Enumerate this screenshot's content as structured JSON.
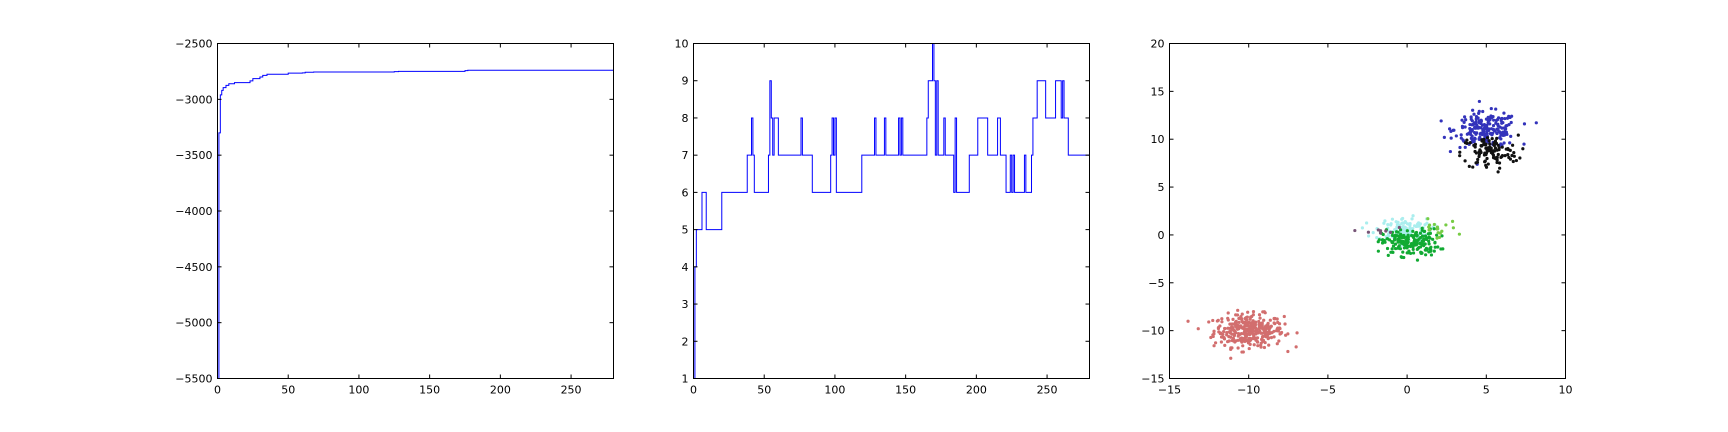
{
  "chart_data": [
    {
      "type": "line",
      "title": "",
      "xlabel": "",
      "ylabel": "",
      "xlim": [
        0,
        280
      ],
      "ylim": [
        -5500,
        -2500
      ],
      "xticks": [
        0,
        50,
        100,
        150,
        200,
        250
      ],
      "yticks": [
        -2500,
        -3000,
        -3500,
        -4000,
        -4500,
        -5000,
        -5500
      ],
      "grid": false,
      "series": [
        {
          "color": "#0000ff",
          "points": [
            [
              0,
              -5500
            ],
            [
              1,
              -3300
            ],
            [
              2,
              -2960
            ],
            [
              3,
              -2920
            ],
            [
              4,
              -2895
            ],
            [
              6,
              -2875
            ],
            [
              8,
              -2860
            ],
            [
              12,
              -2850
            ],
            [
              22,
              -2850
            ],
            [
              23,
              -2835
            ],
            [
              25,
              -2815
            ],
            [
              30,
              -2800
            ],
            [
              32,
              -2785
            ],
            [
              35,
              -2775
            ],
            [
              48,
              -2775
            ],
            [
              50,
              -2765
            ],
            [
              60,
              -2763
            ],
            [
              62,
              -2758
            ],
            [
              68,
              -2755
            ],
            [
              125,
              -2752
            ],
            [
              128,
              -2750
            ],
            [
              170,
              -2750
            ],
            [
              175,
              -2743
            ],
            [
              177,
              -2740
            ],
            [
              280,
              -2740
            ]
          ]
        }
      ]
    },
    {
      "type": "line",
      "title": "",
      "xlabel": "",
      "ylabel": "",
      "xlim": [
        0,
        280
      ],
      "ylim": [
        1,
        10
      ],
      "xticks": [
        0,
        50,
        100,
        150,
        200,
        250
      ],
      "yticks": [
        1,
        2,
        3,
        4,
        5,
        6,
        7,
        8,
        9,
        10
      ],
      "grid": false,
      "series": [
        {
          "color": "#0000ff",
          "points": [
            [
              0,
              1
            ],
            [
              1,
              4
            ],
            [
              2,
              5
            ],
            [
              5,
              5
            ],
            [
              6,
              6
            ],
            [
              8,
              6
            ],
            [
              9,
              5
            ],
            [
              19,
              5
            ],
            [
              20,
              6
            ],
            [
              37,
              6
            ],
            [
              38,
              7
            ],
            [
              40,
              7
            ],
            [
              41,
              8
            ],
            [
              42,
              7
            ],
            [
              43,
              6
            ],
            [
              52,
              6
            ],
            [
              53,
              7
            ],
            [
              54,
              9
            ],
            [
              55,
              8
            ],
            [
              56,
              7
            ],
            [
              57,
              8
            ],
            [
              59,
              8
            ],
            [
              60,
              7
            ],
            [
              75,
              7
            ],
            [
              76,
              8
            ],
            [
              77,
              7
            ],
            [
              83,
              7
            ],
            [
              84,
              6
            ],
            [
              96,
              6
            ],
            [
              97,
              7
            ],
            [
              98,
              8
            ],
            [
              99,
              7
            ],
            [
              100,
              8
            ],
            [
              101,
              6
            ],
            [
              118,
              6
            ],
            [
              119,
              7
            ],
            [
              127,
              7
            ],
            [
              128,
              8
            ],
            [
              129,
              7
            ],
            [
              134,
              7
            ],
            [
              135,
              8
            ],
            [
              136,
              7
            ],
            [
              144,
              7
            ],
            [
              145,
              8
            ],
            [
              146,
              7
            ],
            [
              147,
              8
            ],
            [
              148,
              7
            ],
            [
              164,
              7
            ],
            [
              165,
              8
            ],
            [
              166,
              9
            ],
            [
              168,
              9
            ],
            [
              169,
              10
            ],
            [
              170,
              9
            ],
            [
              171,
              7
            ],
            [
              172,
              9
            ],
            [
              173,
              7
            ],
            [
              176,
              7
            ],
            [
              177,
              8
            ],
            [
              178,
              7
            ],
            [
              183,
              7
            ],
            [
              184,
              6
            ],
            [
              185,
              8
            ],
            [
              186,
              6
            ],
            [
              194,
              6
            ],
            [
              195,
              7
            ],
            [
              200,
              7
            ],
            [
              201,
              8
            ],
            [
              207,
              8
            ],
            [
              208,
              7
            ],
            [
              214,
              7
            ],
            [
              215,
              8
            ],
            [
              216,
              8
            ],
            [
              217,
              7
            ],
            [
              220,
              7
            ],
            [
              221,
              6
            ],
            [
              223,
              6
            ],
            [
              224,
              7
            ],
            [
              225,
              6
            ],
            [
              226,
              7
            ],
            [
              227,
              6
            ],
            [
              233,
              6
            ],
            [
              234,
              7
            ],
            [
              235,
              6
            ],
            [
              238,
              6
            ],
            [
              239,
              7
            ],
            [
              240,
              8
            ],
            [
              242,
              8
            ],
            [
              243,
              9
            ],
            [
              248,
              9
            ],
            [
              249,
              8
            ],
            [
              255,
              8
            ],
            [
              256,
              9
            ],
            [
              259,
              9
            ],
            [
              260,
              8
            ],
            [
              261,
              9
            ],
            [
              262,
              8
            ],
            [
              264,
              8
            ],
            [
              265,
              7
            ],
            [
              280,
              7
            ]
          ]
        }
      ]
    },
    {
      "type": "scatter",
      "title": "",
      "xlabel": "",
      "ylabel": "",
      "xlim": [
        -15,
        10
      ],
      "ylim": [
        -15,
        20
      ],
      "xticks": [
        -15,
        -10,
        -5,
        0,
        5,
        10
      ],
      "yticks": [
        20,
        15,
        10,
        5,
        0,
        -5,
        -10,
        -15
      ],
      "grid": false,
      "series": [
        {
          "color": "#d26e6e",
          "center": [
            -10,
            -10
          ],
          "spread": [
            1.1,
            0.85
          ],
          "count": 330
        },
        {
          "color": "#3333bb",
          "center": [
            5,
            11
          ],
          "spread": [
            1.0,
            0.9
          ],
          "count": 210
        },
        {
          "color": "#111111",
          "center": [
            5.2,
            8.6
          ],
          "spread": [
            0.9,
            0.9
          ],
          "count": 110
        },
        {
          "color": "#aaeeee",
          "center": [
            -0.2,
            0.6
          ],
          "spread": [
            0.9,
            0.6
          ],
          "count": 120
        },
        {
          "color": "#11aa33",
          "center": [
            0.2,
            -0.8
          ],
          "spread": [
            0.9,
            0.7
          ],
          "count": 190
        },
        {
          "color": "#77cc44",
          "center": [
            1.8,
            0.6
          ],
          "spread": [
            0.7,
            0.5
          ],
          "count": 18
        },
        {
          "color": "#775577",
          "center": [
            -1.8,
            0.3
          ],
          "spread": [
            0.5,
            0.4
          ],
          "count": 8
        }
      ]
    }
  ]
}
